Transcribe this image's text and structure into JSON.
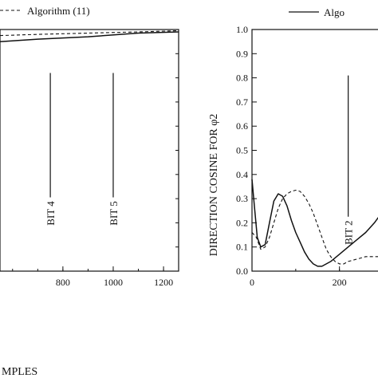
{
  "chart_data": [
    {
      "type": "line",
      "panel": "left",
      "xlabel": "MPLES",
      "ylabel": "",
      "xlim": [
        550,
        1260
      ],
      "ylim": [
        0.0,
        1.0
      ],
      "xticks": [
        800,
        1000,
        1200
      ],
      "legend": {
        "visible_entry": "Algorithm (11)",
        "position": "top"
      },
      "series": [
        {
          "name": "",
          "style": "solid",
          "x": [
            550,
            700,
            900,
            1100,
            1260
          ],
          "y": [
            0.95,
            0.96,
            0.97,
            0.985,
            0.99
          ]
        },
        {
          "name": "Algorithm (11)",
          "style": "dashed",
          "x": [
            550,
            700,
            900,
            1100,
            1260
          ],
          "y": [
            0.975,
            0.98,
            0.985,
            0.99,
            0.995
          ]
        }
      ],
      "annotations": [
        {
          "text": "BIT 4",
          "x": 750,
          "y_top": 0.82,
          "y_bottom": 0.18
        },
        {
          "text": "BIT 5",
          "x": 1000,
          "y_top": 0.82,
          "y_bottom": 0.18
        }
      ]
    },
    {
      "type": "line",
      "panel": "right",
      "xlabel": "",
      "ylabel": "DIRECTION COSINE FOR φ2",
      "xlim": [
        0,
        310
      ],
      "ylim": [
        0.0,
        1.0
      ],
      "xticks": [
        0,
        200
      ],
      "yticks": [
        0.0,
        0.1,
        0.2,
        0.3,
        0.4,
        0.5,
        0.6,
        0.7,
        0.8,
        0.9,
        1.0
      ],
      "legend": {
        "visible_entry": "Algo",
        "position": "top-right"
      },
      "series": [
        {
          "name": "Algo",
          "style": "solid",
          "x": [
            0,
            5,
            12,
            20,
            30,
            40,
            50,
            60,
            70,
            80,
            90,
            100,
            110,
            120,
            130,
            140,
            150,
            160,
            170,
            180,
            200,
            220,
            240,
            260,
            280,
            300,
            310
          ],
          "y": [
            0.38,
            0.28,
            0.14,
            0.1,
            0.11,
            0.2,
            0.29,
            0.32,
            0.31,
            0.27,
            0.21,
            0.16,
            0.12,
            0.08,
            0.05,
            0.03,
            0.02,
            0.02,
            0.03,
            0.04,
            0.07,
            0.1,
            0.13,
            0.16,
            0.2,
            0.25,
            0.28
          ]
        },
        {
          "name": "",
          "style": "dashed",
          "x": [
            0,
            10,
            20,
            30,
            40,
            50,
            60,
            70,
            80,
            90,
            100,
            110,
            120,
            130,
            140,
            150,
            160,
            170,
            180,
            190,
            200,
            210,
            220,
            240,
            260,
            280,
            300,
            310
          ],
          "y": [
            0.16,
            0.14,
            0.09,
            0.1,
            0.14,
            0.2,
            0.26,
            0.3,
            0.32,
            0.33,
            0.335,
            0.33,
            0.31,
            0.28,
            0.24,
            0.19,
            0.14,
            0.09,
            0.06,
            0.04,
            0.03,
            0.03,
            0.04,
            0.05,
            0.06,
            0.06,
            0.06,
            0.06
          ]
        }
      ],
      "annotations": [
        {
          "text": "BIT 2",
          "x": 220,
          "y_top": 0.81,
          "y_bottom": 0.1
        }
      ]
    }
  ]
}
